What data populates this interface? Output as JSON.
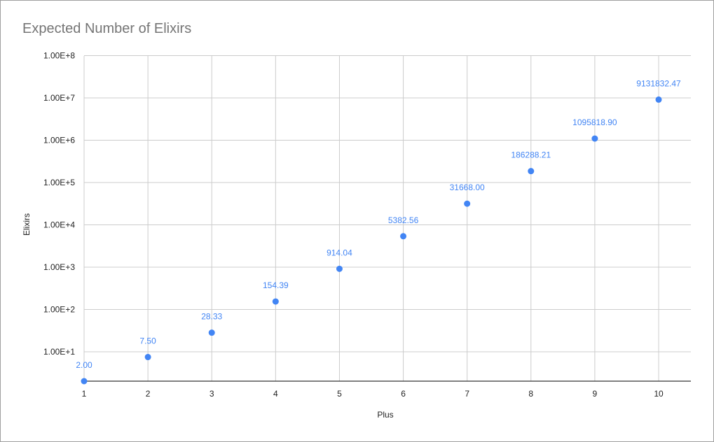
{
  "chart_data": {
    "type": "scatter",
    "title": "Expected Number of Elixirs",
    "xlabel": "Plus",
    "ylabel": "Elixirs",
    "xlim": [
      1,
      10
    ],
    "x_ticks": [
      "1",
      "2",
      "3",
      "4",
      "5",
      "6",
      "7",
      "8",
      "9",
      "10"
    ],
    "y_scale": "log",
    "y_ticks": [
      "1.00E+1",
      "1.00E+2",
      "1.00E+3",
      "1.00E+4",
      "1.00E+5",
      "1.00E+6",
      "1.00E+7",
      "1.00E+8"
    ],
    "grid": true,
    "color": "#4285f4",
    "points": [
      {
        "x": 1,
        "y": 2.0,
        "label": "2.00"
      },
      {
        "x": 2,
        "y": 7.5,
        "label": "7.50"
      },
      {
        "x": 3,
        "y": 28.33,
        "label": "28.33"
      },
      {
        "x": 4,
        "y": 154.39,
        "label": "154.39"
      },
      {
        "x": 5,
        "y": 914.04,
        "label": "914.04"
      },
      {
        "x": 6,
        "y": 5382.56,
        "label": "5382.56"
      },
      {
        "x": 7,
        "y": 31668.0,
        "label": "31668.00"
      },
      {
        "x": 8,
        "y": 186288.21,
        "label": "186288.21"
      },
      {
        "x": 9,
        "y": 1095818.9,
        "label": "1095818.90"
      },
      {
        "x": 10,
        "y": 9131832.47,
        "label": "9131832.47"
      }
    ]
  }
}
